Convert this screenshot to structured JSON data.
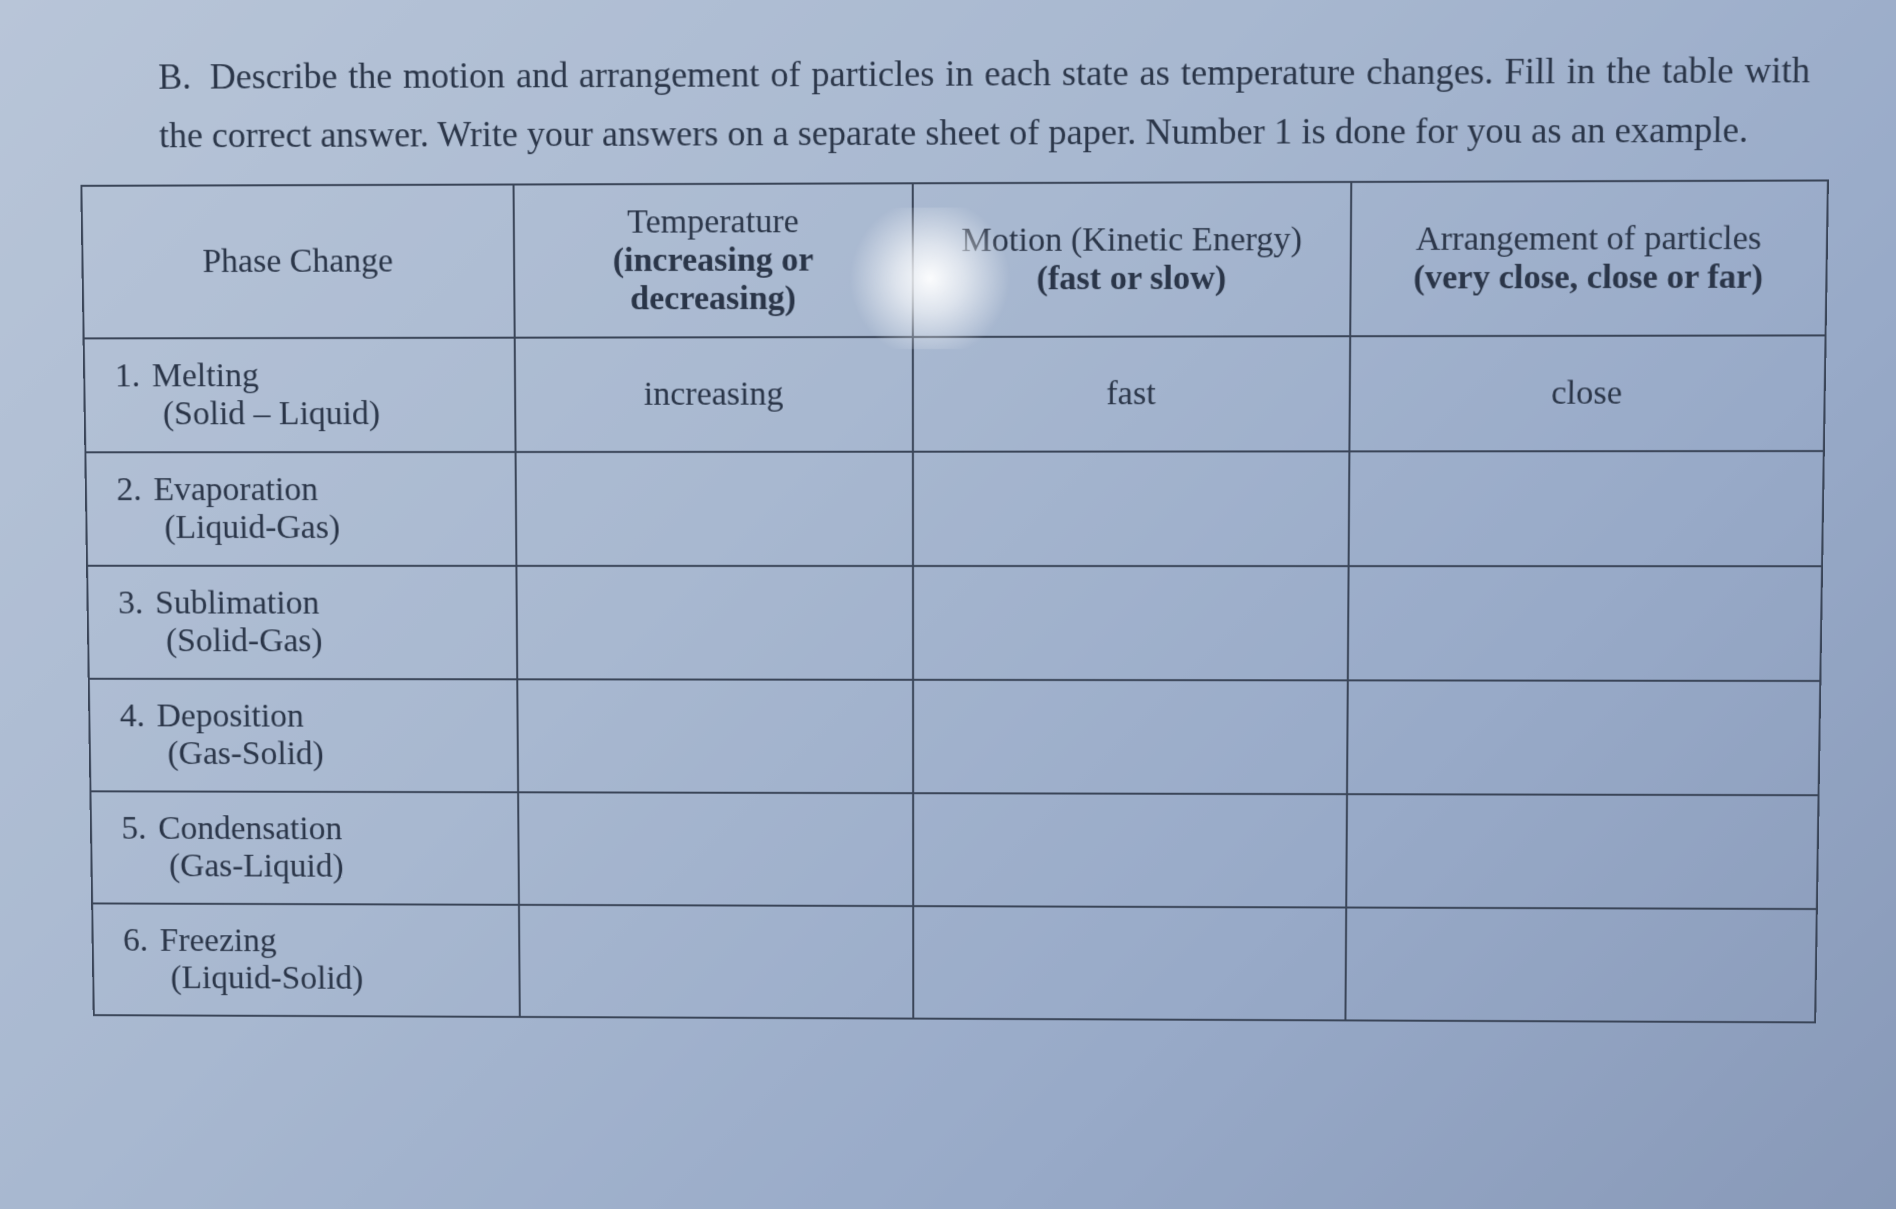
{
  "instruction": {
    "label": "B.",
    "text": "Describe the motion and arrangement of particles in each state as temperature changes. Fill in the table with the correct answer. Write your answers on a separate sheet of paper. Number 1 is done for you as an example."
  },
  "table": {
    "headers": {
      "phase": "Phase Change",
      "temperature_line1": "Temperature",
      "temperature_line2": "(increasing or decreasing)",
      "motion_line1": "Motion (Kinetic Energy)",
      "motion_line2": "(fast or slow)",
      "arrangement_line1": "Arrangement of particles",
      "arrangement_line2": "(very close, close or far)"
    },
    "rows": [
      {
        "number": "1.",
        "name": "Melting",
        "transition": "(Solid – Liquid)",
        "temperature": "increasing",
        "motion": "fast",
        "arrangement": "close"
      },
      {
        "number": "2.",
        "name": "Evaporation",
        "transition": "(Liquid-Gas)",
        "temperature": "",
        "motion": "",
        "arrangement": ""
      },
      {
        "number": "3.",
        "name": "Sublimation",
        "transition": "(Solid-Gas)",
        "temperature": "",
        "motion": "",
        "arrangement": ""
      },
      {
        "number": "4.",
        "name": "Deposition",
        "transition": "(Gas-Solid)",
        "temperature": "",
        "motion": "",
        "arrangement": ""
      },
      {
        "number": "5.",
        "name": "Condensation",
        "transition": "(Gas-Liquid)",
        "temperature": "",
        "motion": "",
        "arrangement": ""
      },
      {
        "number": "6.",
        "name": "Freezing",
        "transition": "(Liquid-Solid)",
        "temperature": "",
        "motion": "",
        "arrangement": ""
      }
    ]
  },
  "styling": {
    "background_gradient_start": "#b8c5d8",
    "background_gradient_end": "#8899b8",
    "text_color": "#2a3548",
    "border_color": "#3a4558",
    "font_family": "Georgia, Times New Roman, serif",
    "instruction_fontsize": 36,
    "table_fontsize": 34,
    "border_width": 2
  }
}
